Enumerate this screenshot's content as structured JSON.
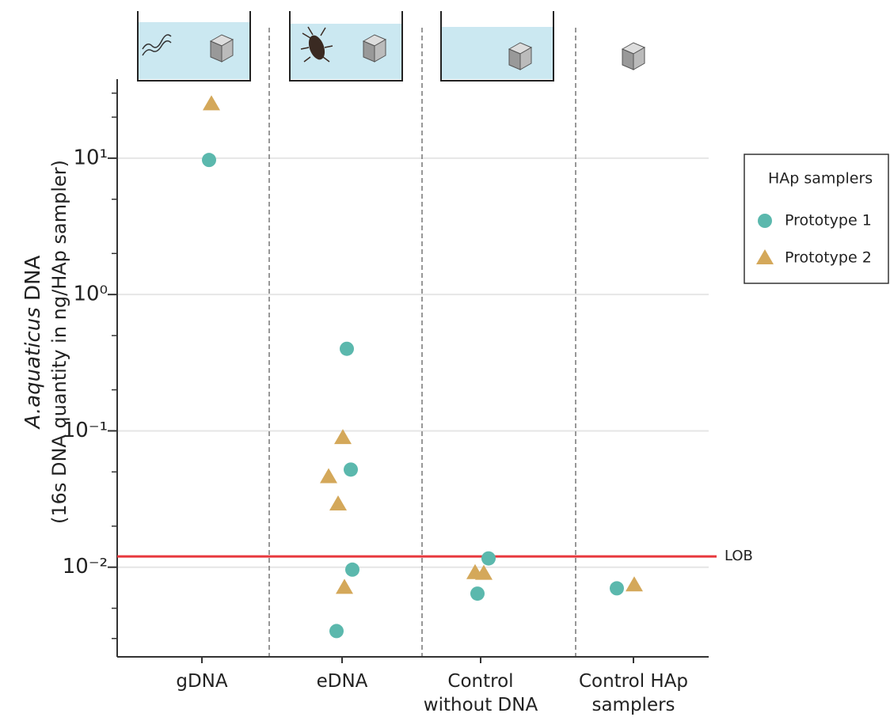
{
  "chart_data": {
    "type": "scatter",
    "ylabel": {
      "species": "A.aquaticus",
      "line1": "DNA",
      "line2": "(16s DNA quantity in ng/HAp sampler)"
    },
    "categories": [
      "gDNA",
      "eDNA",
      "Control without DNA",
      "Control HAp samplers"
    ],
    "log_scale": "y",
    "ylim": [
      0.0022,
      38
    ],
    "yticks": [
      {
        "value": 10,
        "label": "10¹"
      },
      {
        "value": 1,
        "label": "10⁰"
      },
      {
        "value": 0.1,
        "label": "10⁻¹"
      },
      {
        "value": 0.01,
        "label": "10⁻²"
      }
    ],
    "yminorticks": [
      30,
      20,
      5,
      2,
      0.5,
      0.2,
      0.05,
      0.02,
      0.005,
      0.003
    ],
    "grid": true,
    "reference_line": {
      "label": "LOB",
      "value": 0.012,
      "color": "#e8383d"
    },
    "legend": {
      "title": "HAp samplers",
      "position": "right"
    },
    "series": [
      {
        "name": "Prototype 1",
        "color": "#5bb8ad",
        "marker": "circle",
        "x": [
          "gDNA",
          "eDNA",
          "eDNA",
          "eDNA",
          "eDNA",
          "Control without DNA",
          "Control without DNA",
          "Control HAp samplers"
        ],
        "values": [
          9.7,
          0.4,
          0.052,
          0.0096,
          0.0034,
          0.0116,
          0.0064,
          0.007
        ]
      },
      {
        "name": "Prototype 2",
        "color": "#d4a85a",
        "marker": "triangle",
        "x": [
          "gDNA",
          "eDNA",
          "eDNA",
          "eDNA",
          "eDNA",
          "Control without DNA",
          "Control without DNA",
          "Control HAp samplers"
        ],
        "values": [
          25,
          0.089,
          0.046,
          0.029,
          0.0071,
          0.0091,
          0.009,
          0.0074
        ]
      }
    ]
  }
}
